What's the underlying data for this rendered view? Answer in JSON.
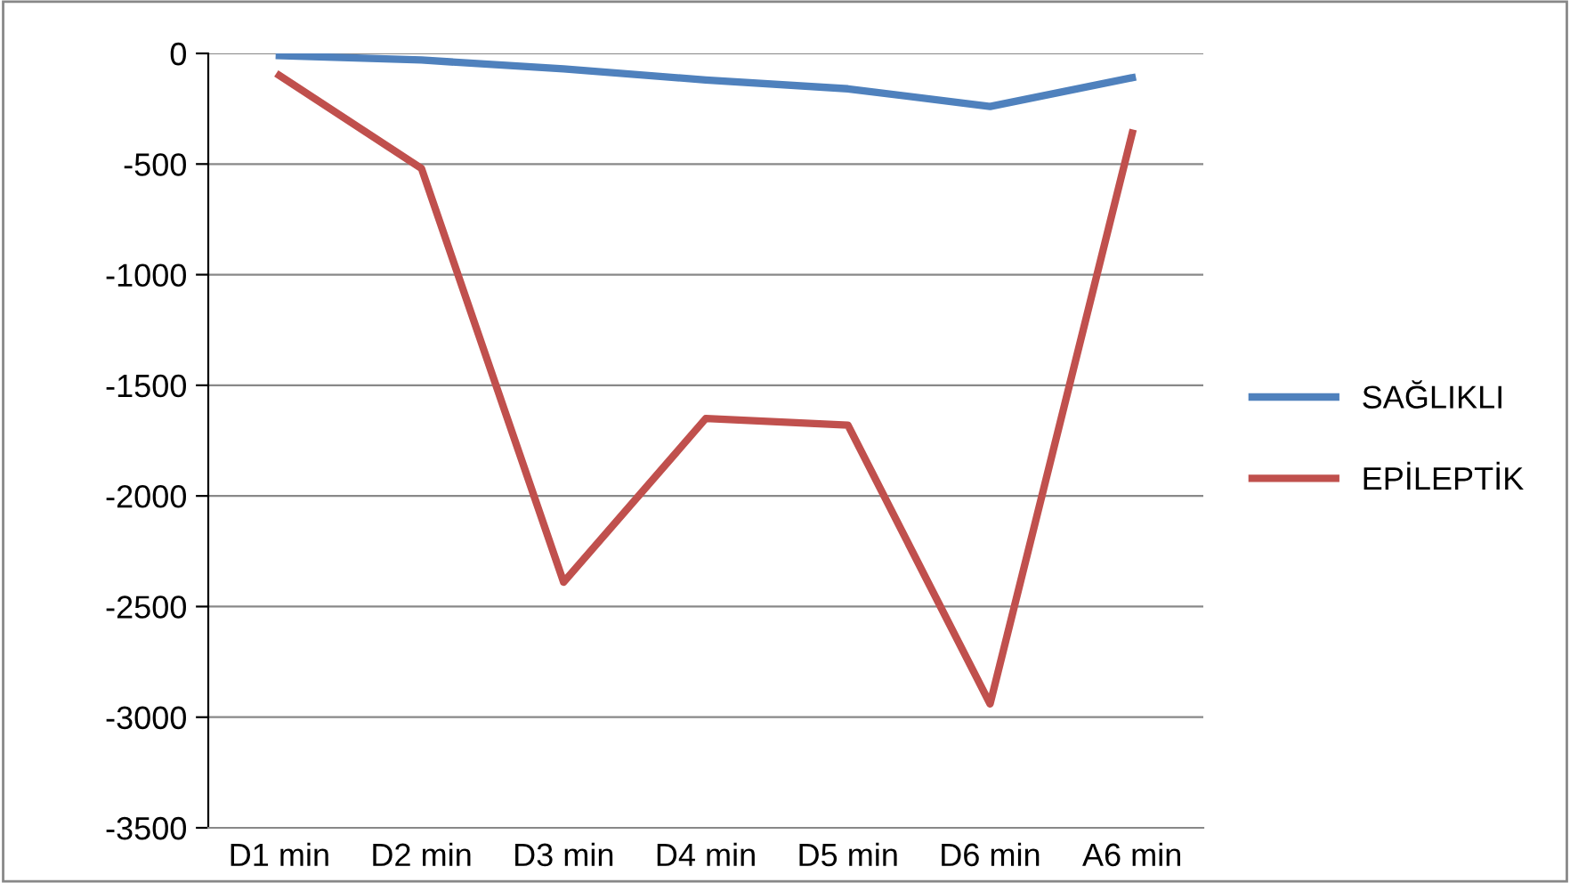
{
  "chart_data": {
    "type": "line",
    "categories": [
      "D1 min",
      "D2 min",
      "D3 min",
      "D4 min",
      "D5 min",
      "D6 min",
      "A6 min"
    ],
    "series": [
      {
        "name": "SAĞLIKLI",
        "color": "#4f81bd",
        "values": [
          -10,
          -30,
          -70,
          -120,
          -160,
          -240,
          -110
        ]
      },
      {
        "name": "EPİLEPTİK",
        "color": "#c0504d",
        "values": [
          -100,
          -520,
          -2390,
          -1650,
          -1680,
          -2940,
          -360
        ]
      }
    ],
    "ylim": [
      -3500,
      0
    ],
    "yticks": [
      -3500,
      -3000,
      -2500,
      -2000,
      -1500,
      -1000,
      -500,
      0
    ],
    "grid": "y",
    "legend": "right",
    "marker": "none",
    "line_style": "solid"
  }
}
